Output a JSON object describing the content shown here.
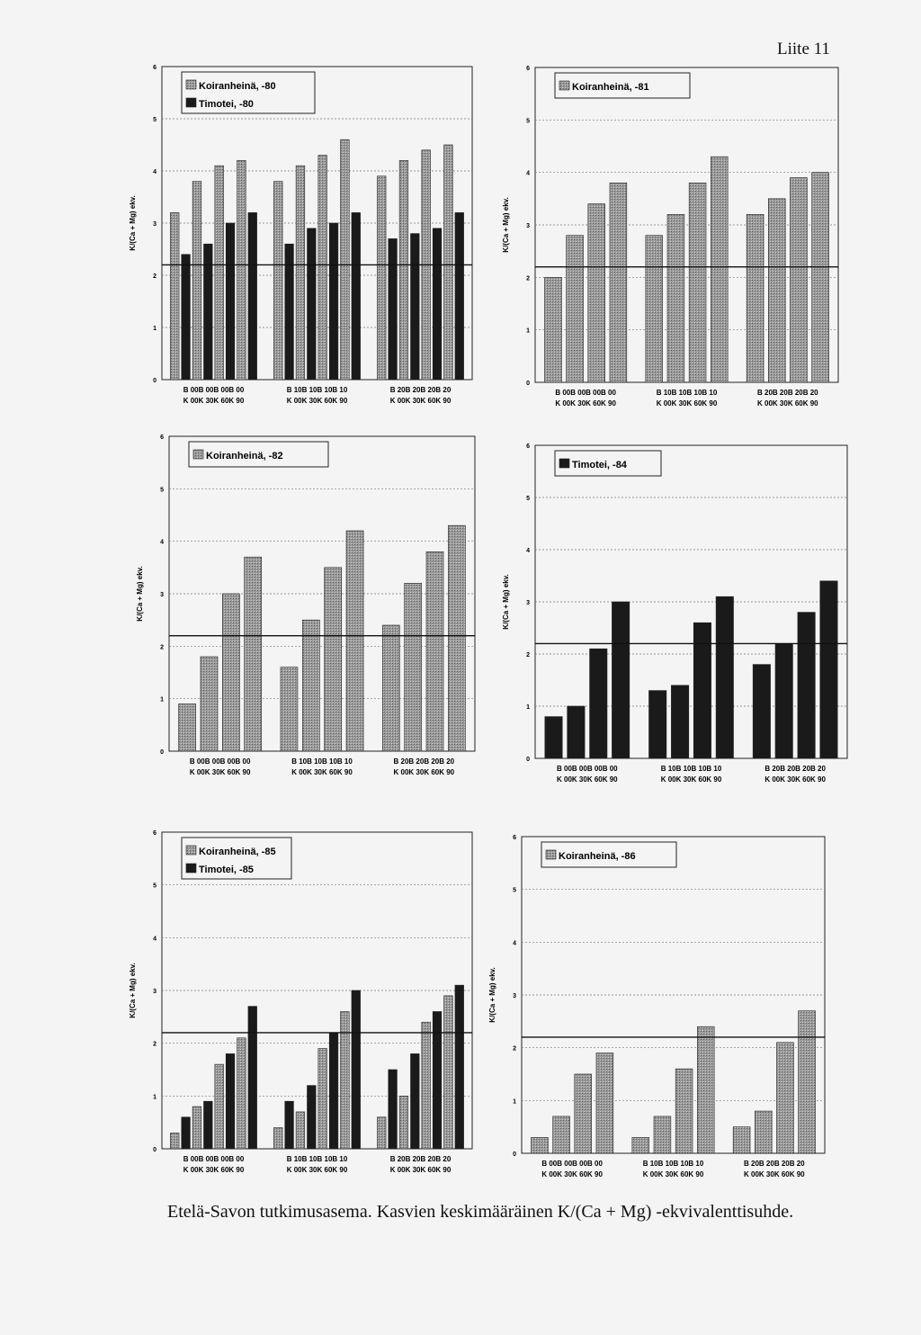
{
  "page": {
    "title": "Liite 11",
    "caption": "Etelä-Savon tutkimusasema. Kasvien keskimääräinen K/(Ca + Mg) -ekvivalenttisuhde."
  },
  "colors": {
    "koiranheina": "#9a9a9a",
    "timotei": "#1a1a1a"
  },
  "chart_data": [
    {
      "type": "bar",
      "legend": [
        "Koiranheinä, -80",
        "Timotei, -80"
      ],
      "ylabel": "K/(Ca + Mg) ekv.",
      "ylim": [
        0,
        6
      ],
      "yticks": [
        "0",
        "1",
        "2",
        "3",
        "4",
        "5",
        "6"
      ],
      "reference_line": 2.2,
      "groups": [
        {
          "b": "B 00B 00B 00B 00",
          "k": "K 00K 30K 60K 90"
        },
        {
          "b": "B 10B 10B 10B 10",
          "k": "K 00K 30K 60K 90"
        },
        {
          "b": "B 20B 20B 20B 20",
          "k": "K 00K 30K 60K 90"
        }
      ],
      "series": [
        {
          "name": "Koiranheinä, -80",
          "color": "koiranheina",
          "values": [
            [
              3.2,
              3.8,
              4.1,
              4.2
            ],
            [
              3.8,
              4.1,
              4.3,
              4.6
            ],
            [
              3.9,
              4.2,
              4.4,
              4.5
            ]
          ]
        },
        {
          "name": "Timotei, -80",
          "color": "timotei",
          "values": [
            [
              2.4,
              2.6,
              3.0,
              3.2
            ],
            [
              2.6,
              2.9,
              3.0,
              3.2
            ],
            [
              2.7,
              2.8,
              2.9,
              3.2
            ]
          ]
        }
      ]
    },
    {
      "type": "bar",
      "legend": [
        "Koiranheinä, -81"
      ],
      "ylabel": "K/(Ca + Mg) ekv.",
      "ylim": [
        0,
        6
      ],
      "yticks": [
        "0",
        "1",
        "2",
        "3",
        "4",
        "5",
        "6"
      ],
      "reference_line": 2.2,
      "groups": [
        {
          "b": "B 00B 00B 00B 00",
          "k": "K 00K 30K 60K 90"
        },
        {
          "b": "B 10B 10B 10B 10",
          "k": "K 00K 30K 60K 90"
        },
        {
          "b": "B 20B 20B 20B 20",
          "k": "K 00K 30K 60K 90"
        }
      ],
      "series": [
        {
          "name": "Koiranheinä, -81",
          "color": "koiranheina",
          "values": [
            [
              2.0,
              2.8,
              3.4,
              3.8
            ],
            [
              2.8,
              3.2,
              3.8,
              4.3
            ],
            [
              3.2,
              3.5,
              3.9,
              4.0
            ]
          ]
        }
      ]
    },
    {
      "type": "bar",
      "legend": [
        "Koiranheinä, -82"
      ],
      "ylabel": "K/(Ca + Mg) ekv.",
      "ylim": [
        0,
        6
      ],
      "yticks": [
        "0",
        "1",
        "2",
        "3",
        "4",
        "5",
        "6"
      ],
      "reference_line": 2.2,
      "groups": [
        {
          "b": "B 00B 00B 00B 00",
          "k": "K 00K 30K 60K 90"
        },
        {
          "b": "B 10B 10B 10B 10",
          "k": "K 00K 30K 60K 90"
        },
        {
          "b": "B 20B 20B 20B 20",
          "k": "K 00K 30K 60K 90"
        }
      ],
      "series": [
        {
          "name": "Koiranheinä, -82",
          "color": "koiranheina",
          "values": [
            [
              0.9,
              1.8,
              3.0,
              3.7
            ],
            [
              1.6,
              2.5,
              3.5,
              4.2
            ],
            [
              2.4,
              3.2,
              3.8,
              4.3
            ]
          ]
        }
      ]
    },
    {
      "type": "bar",
      "legend": [
        "Timotei, -84"
      ],
      "ylabel": "K/(Ca + Mg) ekv.",
      "ylim": [
        0,
        6
      ],
      "yticks": [
        "0",
        "1",
        "2",
        "3",
        "4",
        "5",
        "6"
      ],
      "reference_line": 2.2,
      "groups": [
        {
          "b": "B 00B 00B 00B 00",
          "k": "K 00K 30K 60K 90"
        },
        {
          "b": "B 10B 10B 10B 10",
          "k": "K 00K 30K 60K 90"
        },
        {
          "b": "B 20B 20B 20B 20",
          "k": "K 00K 30K 60K 90"
        }
      ],
      "series": [
        {
          "name": "Timotei, -84",
          "color": "timotei",
          "values": [
            [
              0.8,
              1.0,
              2.1,
              3.0
            ],
            [
              1.3,
              1.4,
              2.6,
              3.1
            ],
            [
              1.8,
              2.2,
              2.8,
              3.4
            ]
          ]
        }
      ]
    },
    {
      "type": "bar",
      "legend": [
        "Koiranheinä, -85",
        "Timotei, -85"
      ],
      "ylabel": "K/(Ca + Mg) ekv.",
      "ylim": [
        0,
        6
      ],
      "yticks": [
        "0",
        "1",
        "2",
        "3",
        "4",
        "5",
        "6"
      ],
      "reference_line": 2.2,
      "groups": [
        {
          "b": "B 00B 00B 00B 00",
          "k": "K 00K 30K 60K 90"
        },
        {
          "b": "B 10B 10B 10B 10",
          "k": "K 00K 30K 60K 90"
        },
        {
          "b": "B 20B 20B 20B 20",
          "k": "K 00K 30K 60K 90"
        }
      ],
      "series": [
        {
          "name": "Koiranheinä, -85",
          "color": "koiranheina",
          "values": [
            [
              0.3,
              0.8,
              1.6,
              2.1
            ],
            [
              0.4,
              0.7,
              1.9,
              2.6
            ],
            [
              0.6,
              1.0,
              2.4,
              2.9
            ]
          ]
        },
        {
          "name": "Timotei, -85",
          "color": "timotei",
          "values": [
            [
              0.6,
              0.9,
              1.8,
              2.7
            ],
            [
              0.9,
              1.2,
              2.2,
              3.0
            ],
            [
              1.5,
              1.8,
              2.6,
              3.1
            ]
          ]
        }
      ]
    },
    {
      "type": "bar",
      "legend": [
        "Koiranheinä, -86"
      ],
      "ylabel": "K/(Ca + Mg) ekv.",
      "ylim": [
        0,
        6
      ],
      "yticks": [
        "0",
        "1",
        "2",
        "3",
        "4",
        "5",
        "6"
      ],
      "reference_line": 2.2,
      "groups": [
        {
          "b": "B 00B 00B 00B 00",
          "k": "K 00K 30K 60K 90"
        },
        {
          "b": "B 10B 10B 10B 10",
          "k": "K 00K 30K 60K 90"
        },
        {
          "b": "B 20B 20B 20B 20",
          "k": "K 00K 30K 60K 90"
        }
      ],
      "series": [
        {
          "name": "Koiranheinä, -86",
          "color": "koiranheina",
          "values": [
            [
              0.3,
              0.7,
              1.5,
              1.9
            ],
            [
              0.3,
              0.7,
              1.6,
              2.4
            ],
            [
              0.5,
              0.8,
              2.1,
              2.7
            ]
          ]
        }
      ]
    }
  ]
}
